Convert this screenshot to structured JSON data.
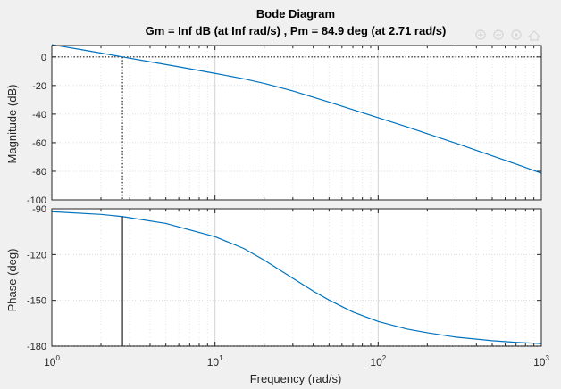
{
  "chart_data": {
    "type": "line",
    "title": "Bode Diagram",
    "subtitle": "Gm = Inf dB (at Inf rad/s) ,  Pm = 84.9 deg (at 2.71 rad/s)",
    "xlabel": "Frequency  (rad/s)",
    "xscale": "log",
    "xlim": [
      1,
      1000
    ],
    "x_ticks": [
      1,
      10,
      100,
      1000
    ],
    "x_tick_labels": [
      {
        "base": "10",
        "exp": "0"
      },
      {
        "base": "10",
        "exp": "1"
      },
      {
        "base": "10",
        "exp": "2"
      },
      {
        "base": "10",
        "exp": "3"
      }
    ],
    "grid": true,
    "panels": [
      {
        "name": "magnitude",
        "ylabel": "Magnitude (dB)",
        "ylim": [
          -100,
          8
        ],
        "y_ticks": [
          0,
          -20,
          -40,
          -60,
          -80,
          -100
        ],
        "y_tick_labels": [
          "0",
          "-20",
          "-40",
          "-60",
          "-80",
          "-100"
        ],
        "reference_line": {
          "y": 0,
          "style": "dotted"
        },
        "marker_line": {
          "x": 2.71,
          "from": 0,
          "to": -100,
          "style": "dotted"
        },
        "series": [
          {
            "color": "#0072bd",
            "x": [
              1,
              1.5,
              2,
              2.71,
              4,
              6,
              10,
              15,
              20,
              30,
              50,
              70,
              100,
              150,
              200,
              300,
              500,
              700,
              1000
            ],
            "y": [
              8.6,
              5.2,
              2.7,
              0.0,
              -3.4,
              -6.9,
              -11.5,
              -15.3,
              -18.5,
              -23.8,
              -31.6,
              -36.9,
              -42.5,
              -48.9,
              -53.7,
              -60.4,
              -69.2,
              -75.0,
              -81.3
            ]
          }
        ]
      },
      {
        "name": "phase",
        "ylabel": "Phase (deg)",
        "ylim": [
          -180,
          -90
        ],
        "y_ticks": [
          -90,
          -120,
          -150,
          -180
        ],
        "y_tick_labels": [
          "-90",
          "-120",
          "-150",
          "-180"
        ],
        "reference_line": {
          "y": -180,
          "style": "dotted"
        },
        "marker_line": {
          "x": 2.71,
          "from": -95.1,
          "to": -180,
          "style": "solid"
        },
        "series": [
          {
            "color": "#0072bd",
            "x": [
              1,
              2,
              2.71,
              5,
              10,
              15,
              20,
              30,
              40,
              50,
              70,
              100,
              150,
              200,
              300,
              500,
              700,
              1000
            ],
            "y": [
              -91.9,
              -93.7,
              -95.1,
              -99.6,
              -108.3,
              -116.0,
              -123.6,
              -135.5,
              -143.9,
              -149.8,
              -157.6,
              -163.8,
              -168.8,
              -171.2,
              -174.1,
              -176.4,
              -177.5,
              -178.3
            ]
          }
        ]
      }
    ]
  }
}
